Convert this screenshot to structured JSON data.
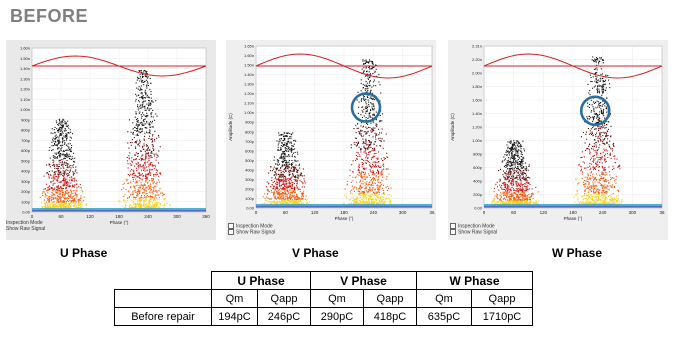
{
  "heading": "BEFORE",
  "panels": [
    {
      "id": "u",
      "phase_label": "U Phase",
      "axis_x_label": "Phase (°)",
      "x_ticks": [
        "0",
        "60",
        "120",
        "180",
        "240",
        "300",
        "360"
      ],
      "y_ticks": [
        "0.00",
        "100p",
        "200p",
        "300p",
        "400p",
        "500p",
        "600p",
        "700p",
        "800p",
        "900p",
        "1.00n",
        "1.10n",
        "1.20n",
        "1.30n",
        "1.40n",
        "1.50n",
        "1.60n"
      ],
      "mode_labels": [
        "Inspection Mode",
        "Show Raw Signal"
      ],
      "circle": false
    },
    {
      "id": "v",
      "phase_label": "V Phase",
      "axis_x_label": "Phase (°)",
      "axis_y_label": "Amplitude (C)",
      "x_ticks": [
        "0",
        "60",
        "120",
        "180",
        "240",
        "300",
        "36"
      ],
      "y_ticks": [
        "0.00",
        "100p",
        "200p",
        "300p",
        "400p",
        "500p",
        "600p",
        "700p",
        "800p",
        "900p",
        "1.00n",
        "1.10n",
        "1.20n",
        "1.30n",
        "1.40n",
        "1.50n",
        "1.60n",
        "1.65n"
      ],
      "mode_labels": [
        "Inspection Mode",
        "Show Raw Signal"
      ],
      "circle": true
    },
    {
      "id": "w",
      "phase_label": "W Phase",
      "axis_x_label": "Phase (°)",
      "axis_y_label": "Amplitude (C)",
      "x_ticks": [
        "0",
        "60",
        "120",
        "180",
        "240",
        "300",
        "36"
      ],
      "y_ticks": [
        "0.00",
        "200p",
        "400p",
        "600p",
        "800p",
        "1.00n",
        "1.20n",
        "1.40n",
        "1.60n",
        "1.80n",
        "2.00n",
        "2.20n",
        "2.31n"
      ],
      "mode_labels": [
        "Inspection Mode",
        "Show Raw Signal"
      ],
      "circle": true
    }
  ],
  "table": {
    "phase_headers": [
      "U Phase",
      "V Phase",
      "W Phase"
    ],
    "sub_headers": [
      "Qm",
      "Qapp",
      "Qm",
      "Qapp",
      "Qm",
      "Qapp"
    ],
    "row_label": "Before repair",
    "values": [
      "194pC",
      "246pC",
      "290pC",
      "418pC",
      "635pC",
      "1710pC"
    ]
  },
  "colors": {
    "sine": "#d0202a",
    "circle": "#2a6f9e",
    "heading": "#7f7f7f"
  }
}
